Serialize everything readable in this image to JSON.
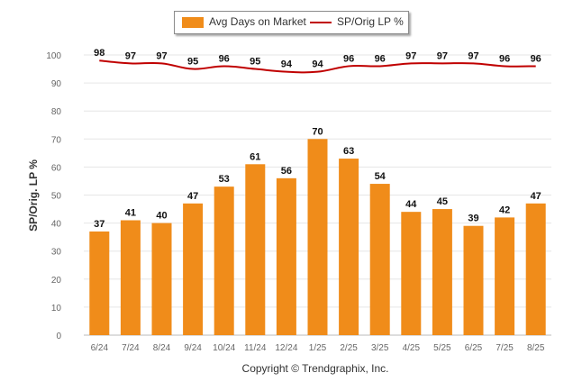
{
  "colors": {
    "bar": "#f08c1a",
    "line": "#c00000",
    "grid": "#e6e6e6",
    "axis_text": "#666666",
    "label_text": "#111111"
  },
  "legend": {
    "bar_label": "Avg Days on Market",
    "line_label": "SP/Orig LP %"
  },
  "footer": "Copyright © Trendgraphix, Inc.",
  "chart_data": {
    "type": "bar",
    "categories": [
      "6/24",
      "7/24",
      "8/24",
      "9/24",
      "10/24",
      "11/24",
      "12/24",
      "1/25",
      "2/25",
      "3/25",
      "4/25",
      "5/25",
      "6/25",
      "7/25",
      "8/25"
    ],
    "series": [
      {
        "name": "Avg Days on Market",
        "type": "bar",
        "values": [
          37,
          41,
          40,
          47,
          53,
          61,
          56,
          70,
          63,
          54,
          44,
          45,
          39,
          42,
          47
        ]
      },
      {
        "name": "SP/Orig LP %",
        "type": "line",
        "values": [
          98,
          97,
          97,
          95,
          96,
          95,
          94,
          94,
          96,
          96,
          97,
          97,
          97,
          96,
          96
        ]
      }
    ],
    "ylabel": "SP/Orig. LP %",
    "ylim": [
      0,
      100
    ],
    "yticks": [
      0,
      10,
      20,
      30,
      40,
      50,
      60,
      70,
      80,
      90,
      100
    ],
    "grid": true,
    "legend_position": "top-center"
  }
}
